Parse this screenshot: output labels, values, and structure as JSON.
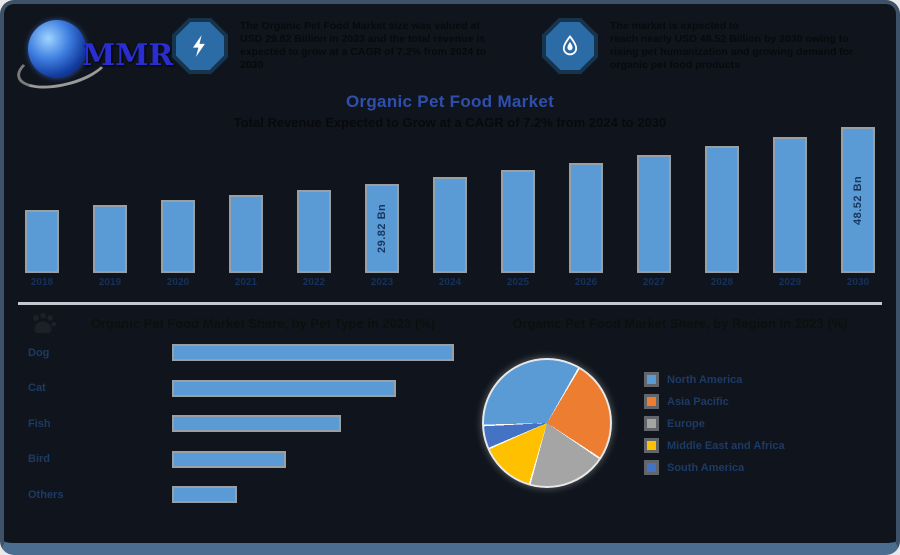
{
  "colors": {
    "card_bg": "#10151d",
    "frame_border": "#3d5268",
    "bottom_strip": "#4a6d90",
    "bar_fill": "#5b9bd5",
    "bar_outline": "#98a0a6",
    "title_blue": "#2e4fae",
    "dark_text": "#07090c",
    "navy_label": "#1c3a66",
    "divider": "#c4c9cf"
  },
  "header": {
    "logo_text": "MMR",
    "badges": [
      {
        "icon": "lightning-icon",
        "lines": [
          "The Organic Pet Food Market size was valued at",
          "USD 29.82 Billion in 2023 and the total revenue is",
          "expected to grow at a CAGR of 7.2% from 2024 to",
          "2030"
        ]
      },
      {
        "icon": "droplet-icon",
        "lines": [
          "The market is expected to",
          "reach nearly USD 48.52 Billion by 2030 owing to",
          "rising pet humanization and growing demand for",
          "organic pet food products"
        ]
      }
    ]
  },
  "title": "Organic Pet Food Market",
  "subtitle": "Total Revenue Expected to Grow at a CAGR of 7.2% from 2024 to 2030",
  "chart_data": [
    {
      "type": "bar",
      "title": "Organic Pet Food Market Revenue (USD Bn), 2018-2030",
      "categories": [
        "2018",
        "2019",
        "2020",
        "2021",
        "2022",
        "2023",
        "2024",
        "2025",
        "2026",
        "2027",
        "2028",
        "2029",
        "2030"
      ],
      "values": [
        21.1,
        22.6,
        24.2,
        26.0,
        27.8,
        29.82,
        31.97,
        34.27,
        36.74,
        39.38,
        42.21,
        45.25,
        48.52
      ],
      "value_labels": {
        "2023": "29.82 Bn",
        "2030": "48.52 Bn"
      },
      "unit": "USD Bn",
      "ylim": [
        0,
        50
      ],
      "grid": false
    },
    {
      "type": "bar-horizontal",
      "title": "Organic Pet Food Market Share, by Pet Type in 2023 (%)",
      "categories": [
        "Dog",
        "Cat",
        "Fish",
        "Bird",
        "Others"
      ],
      "values": [
        48,
        38,
        28.5,
        19,
        10.5
      ],
      "xlim": [
        0,
        50
      ],
      "grid": false
    },
    {
      "type": "pie",
      "title": "Organic Pet Food Market Share, by Region in 2023 (%)",
      "labels": [
        "North America",
        "Asia Pacific",
        "Europe",
        "Middle East and Africa",
        "South America"
      ],
      "values": [
        34,
        26,
        20,
        14,
        6
      ],
      "slice_colors": [
        "#5b9bd5",
        "#ed7d31",
        "#a5a5a5",
        "#ffc000",
        "#4472c4"
      ],
      "start_angle_deg": 267,
      "legend_position": "right"
    }
  ]
}
